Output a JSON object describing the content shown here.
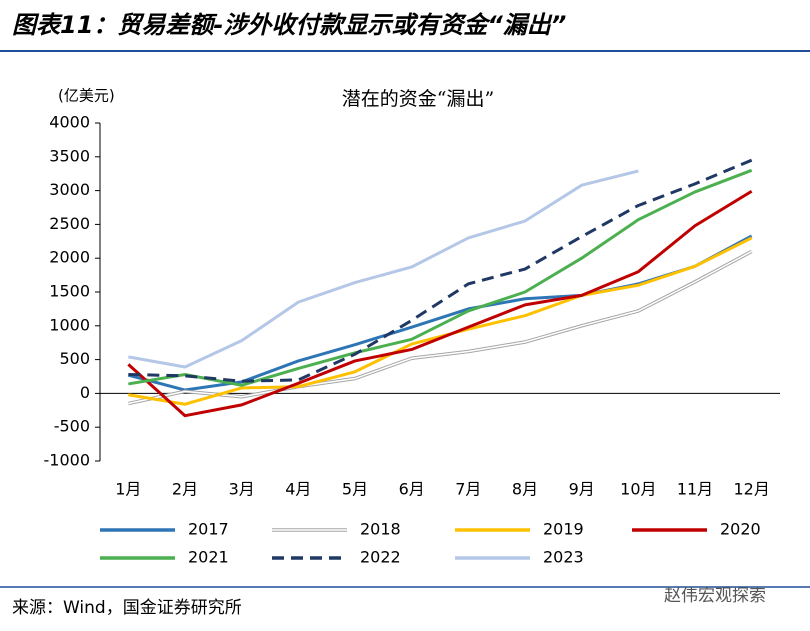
{
  "chart_data": {
    "type": "line",
    "figure_label": "图表11：贸易差额-涉外收付款显示或有资金“漏出”",
    "title": "潜在的资金“漏出”",
    "ylabel": "(亿美元)",
    "source": "来源：Wind，国金证券研究所",
    "watermark": "赵伟宏观探索",
    "categories": [
      "1月",
      "2月",
      "3月",
      "4月",
      "5月",
      "6月",
      "7月",
      "8月",
      "9月",
      "10月",
      "11月",
      "12月"
    ],
    "ylim": [
      -1000,
      4000
    ],
    "yticks": [
      -1000,
      -500,
      0,
      500,
      1000,
      1500,
      2000,
      2500,
      3000,
      3500,
      4000
    ],
    "series": [
      {
        "name": "2017",
        "color": "#2e75b6",
        "values": [
          270,
          50,
          170,
          480,
          720,
          980,
          1250,
          1400,
          1450,
          1620,
          1880,
          2330
        ]
      },
      {
        "name": "2018",
        "color": "#a6a6a6",
        "style": "double",
        "values": [
          -150,
          30,
          -50,
          100,
          220,
          520,
          620,
          760,
          1000,
          1220,
          1650,
          2100
        ]
      },
      {
        "name": "2019",
        "color": "#ffc000",
        "values": [
          -20,
          -160,
          80,
          100,
          320,
          730,
          950,
          1150,
          1450,
          1600,
          1880,
          2300
        ]
      },
      {
        "name": "2020",
        "color": "#c00000",
        "values": [
          430,
          -330,
          -170,
          150,
          480,
          650,
          980,
          1310,
          1450,
          1800,
          2480,
          2990
        ]
      },
      {
        "name": "2021",
        "color": "#4caf50",
        "values": [
          140,
          280,
          120,
          370,
          600,
          800,
          1220,
          1500,
          2000,
          2570,
          2980,
          3300
        ]
      },
      {
        "name": "2022",
        "color": "#1f3864",
        "style": "dashed",
        "values": [
          280,
          260,
          180,
          200,
          580,
          1080,
          1620,
          1840,
          2320,
          2780,
          3100,
          3450
        ]
      },
      {
        "name": "2023",
        "color": "#b4c7e7",
        "values": [
          540,
          390,
          780,
          1350,
          1640,
          1870,
          2300,
          2550,
          3080,
          3290,
          null,
          null
        ]
      }
    ]
  }
}
